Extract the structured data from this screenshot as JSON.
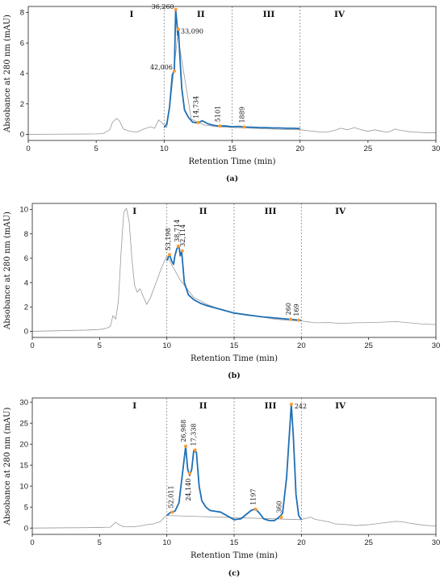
{
  "chart_data": [
    {
      "type": "line",
      "caption": "(a)",
      "xlabel": "Retention Time (min)",
      "ylabel": "Absobance at 280 nm (mAU)",
      "xlim": [
        0,
        30
      ],
      "ylim": [
        -0.4,
        8.4
      ],
      "xticks": [
        0,
        5,
        10,
        15,
        20,
        25,
        30
      ],
      "yticks": [
        0,
        2,
        4,
        6,
        8
      ],
      "region_boundaries": [
        10,
        15,
        20
      ],
      "regions": [
        {
          "label": "I",
          "x": 7.6
        },
        {
          "label": "II",
          "x": 12.7
        },
        {
          "label": "III",
          "x": 17.7
        },
        {
          "label": "IV",
          "x": 22.9
        }
      ],
      "series": [
        {
          "color": "#999999",
          "x": [
            0,
            2,
            4,
            5,
            5.5,
            6,
            6.2,
            6.5,
            6.7,
            7,
            7.5,
            8,
            8.5,
            9,
            9.3,
            9.6,
            9.9,
            10.2,
            10.5,
            11,
            12,
            13,
            14,
            15,
            16,
            17,
            18,
            19,
            20,
            20.5,
            21,
            21.5,
            22,
            22.5,
            23,
            23.5,
            24,
            24.5,
            25,
            25.5,
            26,
            26.5,
            27,
            27.5,
            28,
            28.5,
            29,
            29.5,
            30
          ],
          "y": [
            0,
            0.01,
            0.02,
            0.03,
            0.05,
            0.3,
            0.8,
            1.05,
            0.9,
            0.35,
            0.2,
            0.15,
            0.35,
            0.5,
            0.4,
            0.95,
            0.7,
            0.45,
            2.5,
            6.5,
            1.0,
            0.6,
            0.5,
            0.45,
            0.42,
            0.38,
            0.35,
            0.32,
            0.3,
            0.25,
            0.2,
            0.15,
            0.15,
            0.25,
            0.4,
            0.3,
            0.45,
            0.3,
            0.2,
            0.3,
            0.2,
            0.15,
            0.35,
            0.25,
            0.18,
            0.15,
            0.12,
            0.1,
            0.1
          ]
        },
        {
          "color": "#1f6fb4",
          "x": [
            10,
            10.2,
            10.4,
            10.6,
            10.75,
            10.85,
            10.95,
            11.0,
            11.05,
            11.15,
            11.3,
            11.5,
            11.8,
            12.1,
            12.5,
            12.8,
            13.2,
            13.6,
            14,
            14.5,
            15,
            15.5,
            16,
            16.5,
            17,
            17.5,
            18,
            18.5,
            19,
            19.5,
            20
          ],
          "y": [
            0.45,
            0.7,
            1.8,
            3.9,
            4.2,
            8.2,
            7.2,
            6.5,
            6.9,
            5.2,
            3.0,
            1.6,
            1.1,
            0.8,
            0.75,
            0.9,
            0.7,
            0.6,
            0.55,
            0.55,
            0.5,
            0.52,
            0.48,
            0.47,
            0.45,
            0.44,
            0.42,
            0.42,
            0.4,
            0.4,
            0.38
          ]
        }
      ],
      "markers": [
        {
          "x": 10.75,
          "y": 4.15,
          "label": "42,006"
        },
        {
          "x": 10.85,
          "y": 8.2,
          "label": "36,260"
        },
        {
          "x": 11.05,
          "y": 6.9,
          "label": "33,090"
        },
        {
          "x": 12.5,
          "y": 0.78,
          "label": "14,734"
        },
        {
          "x": 14.1,
          "y": 0.55,
          "label": "5101"
        },
        {
          "x": 15.9,
          "y": 0.48,
          "label": "1889"
        }
      ]
    },
    {
      "type": "line",
      "caption": "(b)",
      "xlabel": "Retention Time (min)",
      "ylabel": "Absobance at 280 nm (mAU)",
      "xlim": [
        0,
        30
      ],
      "ylim": [
        -0.5,
        10.5
      ],
      "xticks": [
        0,
        5,
        10,
        15,
        20,
        25,
        30
      ],
      "yticks": [
        0,
        2,
        4,
        6,
        8,
        10
      ],
      "region_boundaries": [
        10,
        15,
        20
      ],
      "regions": [
        {
          "label": "I",
          "x": 7.6
        },
        {
          "label": "II",
          "x": 12.7
        },
        {
          "label": "III",
          "x": 17.7
        },
        {
          "label": "IV",
          "x": 22.9
        }
      ],
      "series": [
        {
          "color": "#999999",
          "x": [
            0,
            2,
            4,
            5,
            5.5,
            5.8,
            6.0,
            6.2,
            6.4,
            6.6,
            6.8,
            7.0,
            7.2,
            7.4,
            7.6,
            7.8,
            8.0,
            8.2,
            8.5,
            8.8,
            9.2,
            9.6,
            10,
            11,
            12,
            13,
            14,
            15,
            16,
            17,
            18,
            19,
            20,
            21,
            22,
            23,
            24,
            25,
            26,
            27,
            28,
            29,
            30
          ],
          "y": [
            0,
            0.05,
            0.1,
            0.15,
            0.25,
            0.4,
            1.3,
            1.0,
            2.5,
            6.5,
            9.8,
            10.1,
            9.0,
            6.0,
            3.8,
            3.2,
            3.5,
            3.0,
            2.2,
            2.8,
            4.0,
            5.2,
            6.2,
            4.2,
            2.8,
            2.2,
            1.8,
            1.5,
            1.3,
            1.2,
            1.0,
            0.9,
            0.85,
            0.7,
            0.72,
            0.65,
            0.7,
            0.72,
            0.75,
            0.8,
            0.7,
            0.6,
            0.55
          ]
        },
        {
          "color": "#1f6fb4",
          "x": [
            10,
            10.2,
            10.35,
            10.5,
            10.6,
            10.75,
            10.9,
            11.0,
            11.1,
            11.3,
            11.6,
            12,
            12.5,
            13,
            14,
            15,
            16,
            17,
            18,
            19,
            19.5,
            20
          ],
          "y": [
            5.8,
            6.3,
            5.8,
            5.5,
            6.2,
            6.8,
            7.0,
            6.2,
            6.6,
            4.0,
            3.0,
            2.6,
            2.3,
            2.1,
            1.8,
            1.5,
            1.35,
            1.2,
            1.1,
            1.0,
            0.95,
            0.9
          ]
        }
      ],
      "markers": [
        {
          "x": 10.2,
          "y": 6.3,
          "label": "53,198"
        },
        {
          "x": 10.85,
          "y": 7.0,
          "label": "38,714"
        },
        {
          "x": 11.15,
          "y": 6.6,
          "label": "32,114"
        },
        {
          "x": 19.2,
          "y": 1.0,
          "label": "260"
        },
        {
          "x": 19.8,
          "y": 0.92,
          "label": "169"
        }
      ]
    },
    {
      "type": "line",
      "caption": "(c)",
      "xlabel": "Retention Time (min)",
      "ylabel": "Absobance at 280 nm (mAU)",
      "xlim": [
        0,
        30
      ],
      "ylim": [
        -1.5,
        31
      ],
      "xticks": [
        0,
        5,
        10,
        15,
        20,
        25,
        30
      ],
      "yticks": [
        0,
        5,
        10,
        15,
        20,
        25,
        30
      ],
      "region_boundaries": [
        10,
        15,
        20
      ],
      "regions": [
        {
          "label": "I",
          "x": 7.6
        },
        {
          "label": "II",
          "x": 12.7
        },
        {
          "label": "III",
          "x": 17.7
        },
        {
          "label": "IV",
          "x": 22.9
        }
      ],
      "series": [
        {
          "color": "#999999",
          "x": [
            0,
            2,
            4,
            5,
            5.8,
            6.0,
            6.2,
            6.4,
            6.8,
            7.5,
            8,
            8.5,
            9,
            9.5,
            9.8,
            10,
            20,
            20.3,
            20.7,
            21,
            21.5,
            22,
            22.5,
            23,
            23.5,
            24,
            25,
            26,
            27,
            27.5,
            28,
            29,
            30
          ],
          "y": [
            0,
            0.05,
            0.1,
            0.15,
            0.2,
            0.8,
            1.4,
            0.9,
            0.3,
            0.3,
            0.5,
            0.8,
            1.0,
            1.5,
            2.5,
            3.0,
            2.0,
            2.3,
            2.6,
            2.1,
            1.8,
            1.5,
            1.0,
            0.9,
            0.8,
            0.6,
            0.8,
            1.2,
            1.6,
            1.5,
            1.2,
            0.7,
            0.5
          ]
        },
        {
          "color": "#1f6fb4",
          "x": [
            10,
            10.3,
            10.6,
            10.9,
            11.2,
            11.4,
            11.55,
            11.7,
            11.85,
            12.0,
            12.2,
            12.4,
            12.6,
            12.9,
            13.2,
            14,
            15,
            15.5,
            16,
            16.3,
            16.6,
            16.9,
            17.2,
            17.6,
            18,
            18.3,
            18.6,
            18.9,
            19.1,
            19.25,
            19.4,
            19.6,
            19.8,
            20
          ],
          "y": [
            3.0,
            3.8,
            4.0,
            6.0,
            14,
            19.5,
            14,
            12.5,
            14,
            18.5,
            18.0,
            10,
            6.5,
            5.0,
            4.2,
            3.8,
            2.0,
            2.2,
            3.5,
            4.3,
            4.5,
            3.5,
            2.2,
            1.8,
            1.8,
            2.5,
            3.5,
            12,
            22,
            29.5,
            22,
            8,
            3,
            2.0
          ]
        }
      ],
      "markers": [
        {
          "x": 10.4,
          "y": 3.8,
          "label": "52,011"
        },
        {
          "x": 11.4,
          "y": 19.5,
          "label": "26,988"
        },
        {
          "x": 11.7,
          "y": 13.0,
          "label": "24,140"
        },
        {
          "x": 12.1,
          "y": 18.6,
          "label": "17,338"
        },
        {
          "x": 16.6,
          "y": 4.5,
          "label": "1197"
        },
        {
          "x": 18.5,
          "y": 2.6,
          "label": "360"
        },
        {
          "x": 19.25,
          "y": 29.5,
          "label": "242"
        }
      ]
    }
  ]
}
